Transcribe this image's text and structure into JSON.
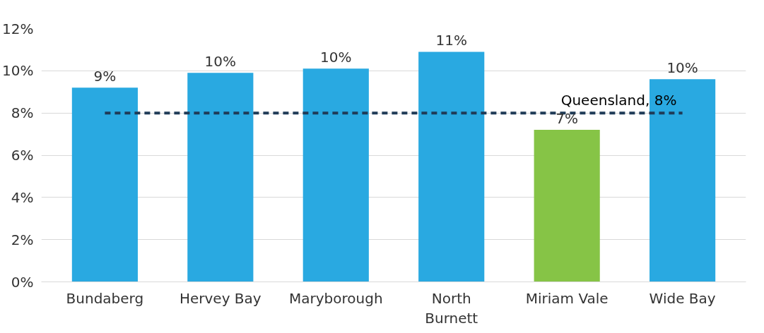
{
  "chart_data": {
    "type": "bar",
    "categories": [
      "Bundaberg",
      "Hervey Bay",
      "Maryborough",
      "North Burnett",
      "Miriam Vale",
      "Wide Bay"
    ],
    "values": [
      9.2,
      9.9,
      10.1,
      10.9,
      7.2,
      9.6
    ],
    "colors": [
      "#29a9e1",
      "#29a9e1",
      "#29a9e1",
      "#29a9e1",
      "#86c446",
      "#29a9e1"
    ],
    "value_labels": [
      "9%",
      "10%",
      "10%",
      "11%",
      "7%",
      "10%"
    ],
    "ylim": [
      0,
      12
    ],
    "yticks": [
      {
        "value": 0,
        "label": "0%"
      },
      {
        "value": 2,
        "label": "2%"
      },
      {
        "value": 4,
        "label": "4%"
      },
      {
        "value": 6,
        "label": "6%"
      },
      {
        "value": 8,
        "label": "8%"
      },
      {
        "value": 10,
        "label": "10%"
      },
      {
        "value": 12,
        "label": "12%"
      }
    ],
    "ref_lines": [
      {
        "axis": "y",
        "value": 8,
        "label": "Queensland, 8%",
        "color": "#1f3b57",
        "line_style": "dashed"
      }
    ],
    "grid": "y"
  }
}
